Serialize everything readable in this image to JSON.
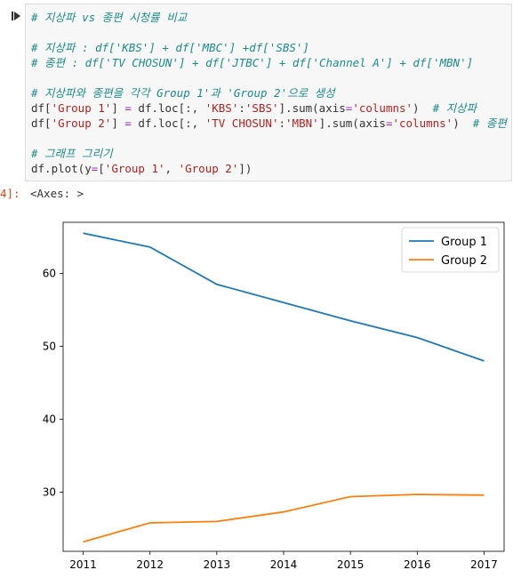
{
  "code_lines": [
    [
      {
        "t": "# 지상파 vs 종편 시청률 비교",
        "c": "cm"
      }
    ],
    [],
    [
      {
        "t": "# 지상파 : df['KBS'] + df['MBC'] +df['SBS']",
        "c": "cm"
      }
    ],
    [
      {
        "t": "# 종편 : df['TV CHOSUN'] + df['JTBC'] + df['Channel A'] + df['MBN']",
        "c": "cm"
      }
    ],
    [],
    [
      {
        "t": "# 지상파와 종편을 각각 Group 1'과 'Group 2'으로 생성",
        "c": "cm"
      }
    ],
    [
      {
        "t": "df[",
        "c": ""
      },
      {
        "t": "'Group 1'",
        "c": "str"
      },
      {
        "t": "] ",
        "c": ""
      },
      {
        "t": "=",
        "c": "op"
      },
      {
        "t": " df.loc[:, ",
        "c": ""
      },
      {
        "t": "'KBS'",
        "c": "str"
      },
      {
        "t": ":",
        "c": ""
      },
      {
        "t": "'SBS'",
        "c": "str"
      },
      {
        "t": "].sum(axis",
        "c": ""
      },
      {
        "t": "=",
        "c": "op"
      },
      {
        "t": "'columns'",
        "c": "str"
      },
      {
        "t": ")  ",
        "c": ""
      },
      {
        "t": "# 지상파",
        "c": "cm"
      }
    ],
    [
      {
        "t": "df[",
        "c": ""
      },
      {
        "t": "'Group 2'",
        "c": "str"
      },
      {
        "t": "] ",
        "c": ""
      },
      {
        "t": "=",
        "c": "op"
      },
      {
        "t": " df.loc[:, ",
        "c": ""
      },
      {
        "t": "'TV CHOSUN'",
        "c": "str"
      },
      {
        "t": ":",
        "c": ""
      },
      {
        "t": "'MBN'",
        "c": "str"
      },
      {
        "t": "].sum(axis",
        "c": ""
      },
      {
        "t": "=",
        "c": "op"
      },
      {
        "t": "'columns'",
        "c": "str"
      },
      {
        "t": ")  ",
        "c": ""
      },
      {
        "t": "# 종편",
        "c": "cm"
      }
    ],
    [],
    [
      {
        "t": "# 그래프 그리기",
        "c": "cm"
      }
    ],
    [
      {
        "t": "df.plot(y",
        "c": ""
      },
      {
        "t": "=",
        "c": "op"
      },
      {
        "t": "[",
        "c": ""
      },
      {
        "t": "'Group 1'",
        "c": "str"
      },
      {
        "t": ", ",
        "c": ""
      },
      {
        "t": "'Group 2'",
        "c": "str"
      },
      {
        "t": "])",
        "c": ""
      }
    ]
  ],
  "output": {
    "prompt": "4]:",
    "text": "<Axes: >"
  },
  "chart_data": {
    "type": "line",
    "x": [
      2011,
      2012,
      2013,
      2014,
      2015,
      2016,
      2017
    ],
    "series": [
      {
        "name": "Group 1",
        "color": "#1f77b4",
        "values": [
          65.5,
          63.6,
          58.5,
          56.0,
          53.5,
          51.2,
          48.0
        ]
      },
      {
        "name": "Group 2",
        "color": "#ff7f0e",
        "values": [
          23.2,
          25.8,
          26.0,
          27.3,
          29.4,
          29.7,
          29.6
        ]
      }
    ],
    "xticks": [
      "2011",
      "2012",
      "2013",
      "2014",
      "2015",
      "2016",
      "2017"
    ],
    "yticks": [
      "30",
      "40",
      "50",
      "60"
    ],
    "ytick_values": [
      30,
      40,
      50,
      60
    ],
    "ylim": [
      21.9,
      67.0
    ],
    "xlim": [
      2010.7,
      2017.3
    ],
    "grid": false,
    "legend": "top-right"
  }
}
